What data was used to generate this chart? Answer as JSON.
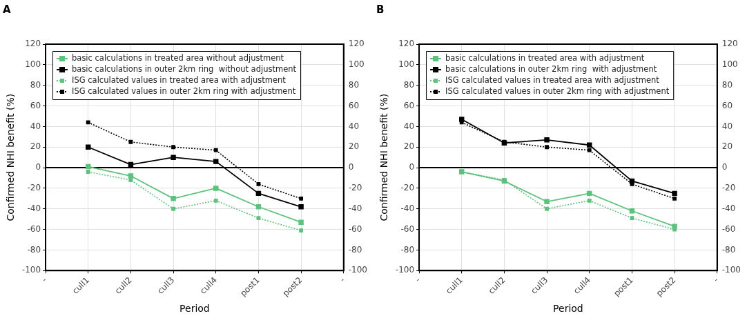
{
  "chart_data": [
    {
      "type": "line",
      "title": "A",
      "xlabel": "Period",
      "ylabel": "Confirmed NHI benefit (%)",
      "categories": [
        "-",
        "cull1",
        "cull2",
        "cull3",
        "cull4",
        "post1",
        "post2",
        "-"
      ],
      "series": [
        {
          "name": "basic calculations in treated area without adjustment",
          "color": "#5cc27c",
          "line_style": "solid",
          "values": [
            null,
            1,
            -8,
            -30,
            -20,
            -38,
            -53,
            null
          ]
        },
        {
          "name": "basic calculations in outer 2km ring  without adjustment",
          "color": "#000000",
          "line_style": "solid",
          "values": [
            null,
            20,
            3,
            10,
            6,
            -25,
            -38,
            null
          ]
        },
        {
          "name": "ISG calculated values in treated area with adjustment",
          "color": "#5cc27c",
          "line_style": "dotted",
          "values": [
            null,
            -4,
            -12,
            -40,
            -32,
            -49,
            -61,
            null
          ]
        },
        {
          "name": "ISG calculated values in outer 2km ring with adjustment",
          "color": "#000000",
          "line_style": "dotted",
          "values": [
            null,
            44,
            25,
            20,
            17,
            -16,
            -30,
            null
          ]
        }
      ],
      "ylim": [
        -100,
        120
      ],
      "yticks": [
        -100,
        -80,
        -60,
        -40,
        -20,
        0,
        20,
        40,
        60,
        80,
        100,
        120
      ],
      "y2lim": [
        -100,
        120
      ],
      "y2ticks": [
        -100,
        -80,
        -60,
        -40,
        -20,
        0,
        20,
        40,
        60,
        80,
        100,
        120
      ],
      "ref_lines": [
        {
          "axis": "y",
          "value": 0,
          "color": "#000000"
        }
      ],
      "grid": true,
      "legend": "top left",
      "marker": "square"
    },
    {
      "type": "line",
      "title": "B",
      "xlabel": "Period",
      "ylabel": "Confirmed NHI benefit (%)",
      "categories": [
        "-",
        "cull1",
        "cull2",
        "cull3",
        "cull4",
        "post1",
        "post2",
        "-"
      ],
      "series": [
        {
          "name": "basic calculations in treated area with adjustment",
          "color": "#5cc27c",
          "line_style": "solid",
          "values": [
            null,
            -4,
            -13,
            -33,
            -25,
            -42,
            -57,
            null
          ]
        },
        {
          "name": "basic calculations in outer 2km ring  with adjustment",
          "color": "#000000",
          "line_style": "solid",
          "values": [
            null,
            47,
            24,
            27,
            22,
            -13,
            -25,
            null
          ]
        },
        {
          "name": "ISG calculated values in treated area with adjustment",
          "color": "#5cc27c",
          "line_style": "dotted",
          "values": [
            null,
            -4,
            -12,
            -40,
            -32,
            -49,
            -60,
            null
          ]
        },
        {
          "name": "ISG calculated values in outer 2km ring with adjustment",
          "color": "#000000",
          "line_style": "dotted",
          "values": [
            null,
            44,
            25,
            20,
            17,
            -16,
            -30,
            null
          ]
        }
      ],
      "ylim": [
        -100,
        120
      ],
      "yticks": [
        -100,
        -80,
        -60,
        -40,
        -20,
        0,
        20,
        40,
        60,
        80,
        100,
        120
      ],
      "y2lim": [
        -100,
        120
      ],
      "y2ticks": [
        -100,
        -80,
        -60,
        -40,
        -20,
        0,
        20,
        40,
        60,
        80,
        100,
        120
      ],
      "ref_lines": [
        {
          "axis": "y",
          "value": 0,
          "color": "#000000"
        }
      ],
      "grid": true,
      "legend": "top left",
      "marker": "square"
    }
  ]
}
